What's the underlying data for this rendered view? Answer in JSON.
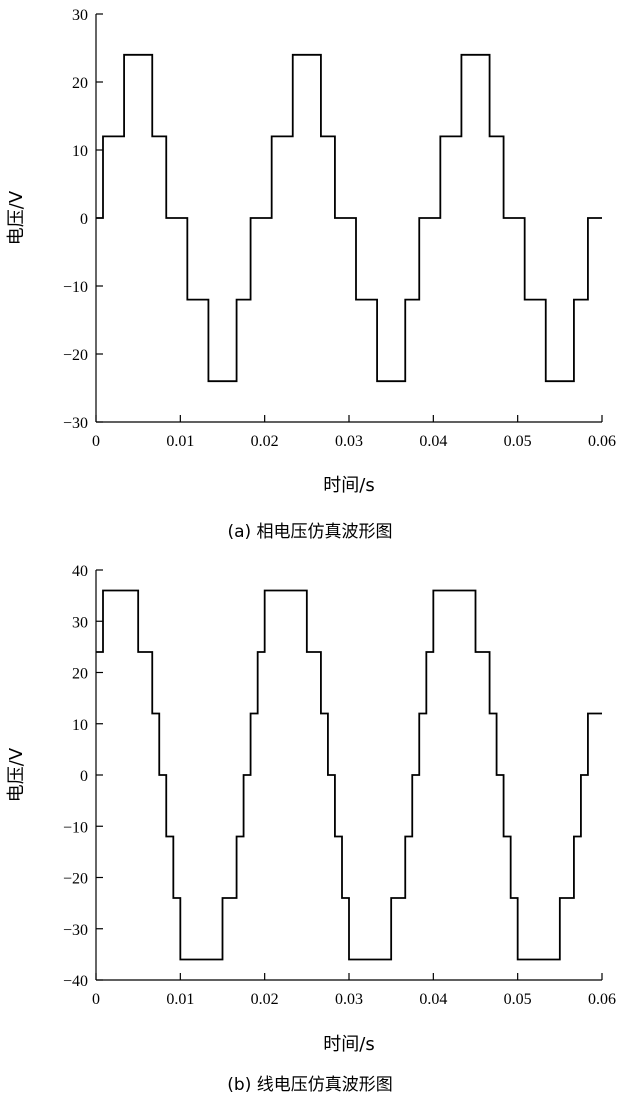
{
  "chart_data": [
    {
      "type": "line",
      "step": true,
      "caption": "(a) 相电压仿真波形图",
      "xlabel": "时间/s",
      "ylabel": "电压/V",
      "xlim": [
        0,
        0.06
      ],
      "ylim": [
        -30,
        30
      ],
      "xticks": [
        0,
        0.01,
        0.02,
        0.03,
        0.04,
        0.05,
        0.06
      ],
      "xtick_labels": [
        "0",
        "0.01",
        "0.02",
        "0.03",
        "0.04",
        "0.05",
        "0.06"
      ],
      "yticks": [
        -30,
        -20,
        -10,
        0,
        10,
        20,
        30
      ],
      "ytick_labels": [
        "−30",
        "−20",
        "−10",
        "0",
        "10",
        "20",
        "30"
      ],
      "grid": false,
      "series": [
        {
          "x": [
            0,
            0.00083,
            0.00333,
            0.00667,
            0.00833,
            0.01083,
            0.01333,
            0.01667,
            0.01833,
            0.02083,
            0.02333,
            0.02667,
            0.02833,
            0.03083,
            0.03333,
            0.03667,
            0.03833,
            0.04083,
            0.04333,
            0.04667,
            0.04833,
            0.05083,
            0.05333,
            0.05667,
            0.05833,
            0.06
          ],
          "y": [
            0,
            12,
            24,
            12,
            0,
            -12,
            -24,
            -12,
            0,
            12,
            24,
            12,
            0,
            -12,
            -24,
            -12,
            0,
            12,
            24,
            12,
            0,
            -12,
            -24,
            -12,
            0,
            0
          ]
        }
      ]
    },
    {
      "type": "line",
      "step": true,
      "caption": "(b) 线电压仿真波形图",
      "xlabel": "时间/s",
      "ylabel": "电压/V",
      "xlim": [
        0,
        0.06
      ],
      "ylim": [
        -40,
        40
      ],
      "xticks": [
        0,
        0.01,
        0.02,
        0.03,
        0.04,
        0.05,
        0.06
      ],
      "xtick_labels": [
        "0",
        "0.01",
        "0.02",
        "0.03",
        "0.04",
        "0.05",
        "0.06"
      ],
      "yticks": [
        -40,
        -30,
        -20,
        -10,
        0,
        10,
        20,
        30,
        40
      ],
      "ytick_labels": [
        "−40",
        "−30",
        "−20",
        "−10",
        "0",
        "10",
        "20",
        "30",
        "40"
      ],
      "grid": false,
      "series": [
        {
          "x": [
            0,
            0.00083,
            0.005,
            0.00667,
            0.0075,
            0.00833,
            0.00917,
            0.01,
            0.01167,
            0.015,
            0.01667,
            0.0175,
            0.01833,
            0.01917,
            0.02,
            0.02167,
            0.025,
            0.02667,
            0.0275,
            0.02833,
            0.02917,
            0.03,
            0.03167,
            0.035,
            0.03667,
            0.0375,
            0.03833,
            0.03917,
            0.04,
            0.04167,
            0.045,
            0.04667,
            0.0475,
            0.04833,
            0.04917,
            0.05,
            0.05167,
            0.055,
            0.05667,
            0.0575,
            0.05833,
            0.05917,
            0.06
          ],
          "y": [
            24,
            36,
            24,
            12,
            0,
            -12,
            -24,
            -36,
            -36,
            -24,
            -12,
            0,
            12,
            24,
            36,
            36,
            24,
            12,
            0,
            -12,
            -24,
            -36,
            -36,
            -24,
            -12,
            0,
            12,
            24,
            36,
            36,
            24,
            12,
            0,
            -12,
            -24,
            -36,
            -36,
            -24,
            -12,
            0,
            12,
            12,
            12
          ]
        }
      ]
    }
  ]
}
